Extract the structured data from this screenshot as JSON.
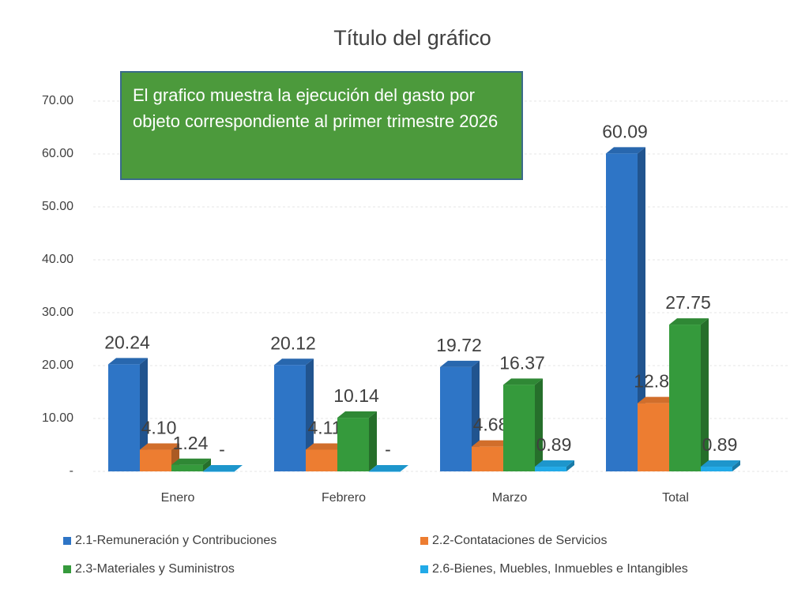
{
  "chart_data": {
    "type": "bar",
    "title": "Título del gráfico",
    "annotation": "El grafico muestra la ejecución del gasto por objeto correspondiente al primer trimestre 2026",
    "categories": [
      "Enero",
      "Febrero",
      "Marzo",
      "Total"
    ],
    "series": [
      {
        "name": "2.1-Remuneración y Contribuciones",
        "color": "#2e75c6",
        "values": [
          20.24,
          20.12,
          19.72,
          60.09
        ],
        "value_labels": [
          "20.24",
          "20.12",
          "19.72",
          "60.09"
        ]
      },
      {
        "name": "2.2-Contataciones de Servicios",
        "color": "#ed7d31",
        "values": [
          4.1,
          4.11,
          4.68,
          12.89
        ],
        "value_labels": [
          "4.10",
          "4.11",
          "4.68",
          "12.89"
        ]
      },
      {
        "name": "2.3-Materiales y Suministros",
        "color": "#359a3c",
        "values": [
          1.24,
          10.14,
          16.37,
          27.75
        ],
        "value_labels": [
          "1.24",
          "10.14",
          "16.37",
          "27.75"
        ]
      },
      {
        "name": "2.6-Bienes, Muebles, Inmuebles e Intangibles",
        "color": "#22aae8",
        "values": [
          0,
          0,
          0.89,
          0.89
        ],
        "value_labels": [
          "-",
          "-",
          "0.89",
          "0.89"
        ]
      }
    ],
    "ylim": [
      0,
      70
    ],
    "yticks": [
      {
        "value": 0,
        "label": "-"
      },
      {
        "value": 10,
        "label": "10.00"
      },
      {
        "value": 20,
        "label": "20.00"
      },
      {
        "value": 30,
        "label": "30.00"
      },
      {
        "value": 40,
        "label": "40.00"
      },
      {
        "value": 50,
        "label": "50.00"
      },
      {
        "value": 60,
        "label": "60.00"
      },
      {
        "value": 70,
        "label": "70.00"
      }
    ],
    "grid": true,
    "legend": "bottom"
  }
}
